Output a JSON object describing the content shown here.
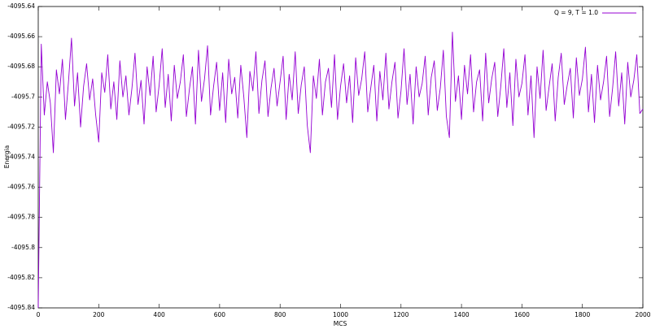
{
  "chart_data": {
    "type": "line",
    "xlabel": "MCS",
    "ylabel": "Energia",
    "legend": "top right",
    "grid": false,
    "xlim": [
      0,
      2000
    ],
    "xticks": [
      0,
      200,
      400,
      600,
      800,
      1000,
      1200,
      1400,
      1600,
      1800,
      2000
    ],
    "ylim": [
      -4095.84,
      -4095.64
    ],
    "yticks": [
      -4095.84,
      -4095.82,
      -4095.8,
      -4095.78,
      -4095.76,
      -4095.74,
      -4095.72,
      -4095.7,
      -4095.68,
      -4095.66,
      -4095.64
    ],
    "x": [
      0,
      10,
      20,
      30,
      40,
      50,
      60,
      70,
      80,
      90,
      100,
      110,
      120,
      130,
      140,
      150,
      160,
      170,
      180,
      190,
      200,
      210,
      220,
      230,
      240,
      250,
      260,
      270,
      280,
      290,
      300,
      310,
      320,
      330,
      340,
      350,
      360,
      370,
      380,
      390,
      400,
      410,
      420,
      430,
      440,
      450,
      460,
      470,
      480,
      490,
      500,
      510,
      520,
      530,
      540,
      550,
      560,
      570,
      580,
      590,
      600,
      610,
      620,
      630,
      640,
      650,
      660,
      670,
      680,
      690,
      700,
      710,
      720,
      730,
      740,
      750,
      760,
      770,
      780,
      790,
      800,
      810,
      820,
      830,
      840,
      850,
      860,
      870,
      880,
      890,
      900,
      910,
      920,
      930,
      940,
      950,
      960,
      970,
      980,
      990,
      1000,
      1010,
      1020,
      1030,
      1040,
      1050,
      1060,
      1070,
      1080,
      1090,
      1100,
      1110,
      1120,
      1130,
      1140,
      1150,
      1160,
      1170,
      1180,
      1190,
      1200,
      1210,
      1220,
      1230,
      1240,
      1250,
      1260,
      1270,
      1280,
      1290,
      1300,
      1310,
      1320,
      1330,
      1340,
      1350,
      1360,
      1370,
      1380,
      1390,
      1400,
      1410,
      1420,
      1430,
      1440,
      1450,
      1460,
      1470,
      1480,
      1490,
      1500,
      1510,
      1520,
      1530,
      1540,
      1550,
      1560,
      1570,
      1580,
      1590,
      1600,
      1610,
      1620,
      1630,
      1640,
      1650,
      1660,
      1670,
      1680,
      1690,
      1700,
      1710,
      1720,
      1730,
      1740,
      1750,
      1760,
      1770,
      1780,
      1790,
      1800,
      1810,
      1820,
      1830,
      1840,
      1850,
      1860,
      1870,
      1880,
      1890,
      1900,
      1910,
      1920,
      1930,
      1940,
      1950,
      1960,
      1970,
      1980,
      1990,
      2000
    ],
    "series": [
      {
        "name": "Q = 9, T = 1.0",
        "color": "#9400d3",
        "values": [
          -4095.84,
          -4095.665,
          -4095.712,
          -4095.69,
          -4095.704,
          -4095.737,
          -4095.682,
          -4095.698,
          -4095.675,
          -4095.715,
          -4095.69,
          -4095.661,
          -4095.706,
          -4095.684,
          -4095.72,
          -4095.693,
          -4095.678,
          -4095.702,
          -4095.688,
          -4095.712,
          -4095.73,
          -4095.684,
          -4095.697,
          -4095.672,
          -4095.708,
          -4095.69,
          -4095.715,
          -4095.676,
          -4095.7,
          -4095.686,
          -4095.712,
          -4095.694,
          -4095.671,
          -4095.705,
          -4095.689,
          -4095.718,
          -4095.68,
          -4095.699,
          -4095.673,
          -4095.71,
          -4095.692,
          -4095.668,
          -4095.707,
          -4095.685,
          -4095.716,
          -4095.679,
          -4095.701,
          -4095.69,
          -4095.672,
          -4095.713,
          -4095.695,
          -4095.68,
          -4095.718,
          -4095.669,
          -4095.703,
          -4095.688,
          -4095.666,
          -4095.712,
          -4095.693,
          -4095.677,
          -4095.709,
          -4095.684,
          -4095.717,
          -4095.675,
          -4095.698,
          -4095.687,
          -4095.714,
          -4095.679,
          -4095.7,
          -4095.727,
          -4095.683,
          -4095.696,
          -4095.67,
          -4095.711,
          -4095.689,
          -4095.676,
          -4095.713,
          -4095.694,
          -4095.681,
          -4095.706,
          -4095.69,
          -4095.673,
          -4095.715,
          -4095.685,
          -4095.702,
          -4095.67,
          -4095.711,
          -4095.692,
          -4095.68,
          -4095.719,
          -4095.737,
          -4095.686,
          -4095.701,
          -4095.675,
          -4095.712,
          -4095.69,
          -4095.681,
          -4095.707,
          -4095.672,
          -4095.715,
          -4095.693,
          -4095.678,
          -4095.704,
          -4095.686,
          -4095.717,
          -4095.674,
          -4095.699,
          -4095.688,
          -4095.67,
          -4095.71,
          -4095.694,
          -4095.679,
          -4095.716,
          -4095.683,
          -4095.702,
          -4095.671,
          -4095.708,
          -4095.69,
          -4095.677,
          -4095.714,
          -4095.696,
          -4095.668,
          -4095.705,
          -4095.685,
          -4095.718,
          -4095.68,
          -4095.7,
          -4095.691,
          -4095.673,
          -4095.712,
          -4095.687,
          -4095.676,
          -4095.709,
          -4095.694,
          -4095.669,
          -4095.713,
          -4095.727,
          -4095.657,
          -4095.703,
          -4095.686,
          -4095.715,
          -4095.679,
          -4095.698,
          -4095.672,
          -4095.71,
          -4095.69,
          -4095.682,
          -4095.716,
          -4095.671,
          -4095.704,
          -4095.688,
          -4095.677,
          -4095.713,
          -4095.693,
          -4095.668,
          -4095.707,
          -4095.684,
          -4095.719,
          -4095.675,
          -4095.7,
          -4095.691,
          -4095.672,
          -4095.712,
          -4095.686,
          -4095.727,
          -4095.68,
          -4095.701,
          -4095.669,
          -4095.709,
          -4095.693,
          -4095.678,
          -4095.716,
          -4095.687,
          -4095.671,
          -4095.705,
          -4095.692,
          -4095.681,
          -4095.714,
          -4095.674,
          -4095.699,
          -4095.688,
          -4095.667,
          -4095.71,
          -4095.685,
          -4095.717,
          -4095.679,
          -4095.702,
          -4095.69,
          -4095.673,
          -4095.713,
          -4095.694,
          -4095.67,
          -4095.706,
          -4095.684,
          -4095.718,
          -4095.677,
          -4095.7,
          -4095.689,
          -4095.672,
          -4095.711,
          -4095.708
        ]
      }
    ]
  }
}
